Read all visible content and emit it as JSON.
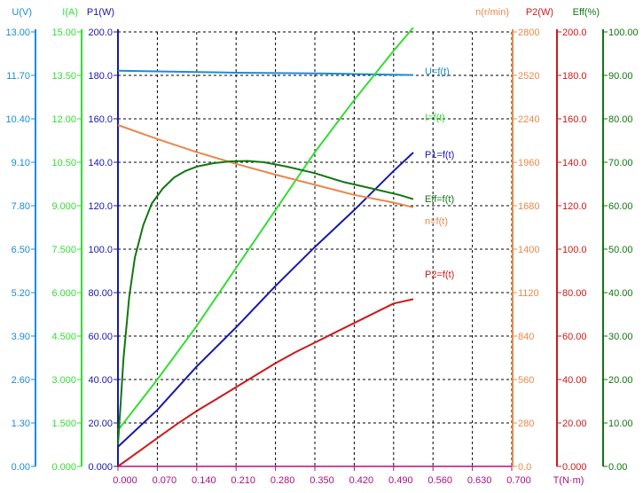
{
  "chart_data": {
    "type": "line",
    "colors": {
      "u": "#1a8cd8",
      "i": "#33dd33",
      "p1": "#1818aa",
      "n": "#e8884a",
      "p2": "#cc1a1a",
      "eff": "#117711",
      "xaxis": "#b0107a",
      "grid": "#000000"
    },
    "x_axis": {
      "label": "T(N·m)",
      "min": 0.0,
      "max": 0.7,
      "ticks": [
        "0.000",
        "0.070",
        "0.140",
        "0.210",
        "0.280",
        "0.350",
        "0.420",
        "0.490",
        "0.560",
        "0.630",
        "0.700"
      ]
    },
    "axes": [
      {
        "key": "u",
        "label": "U(V)",
        "min": 0,
        "max": 13,
        "ticks": [
          "0.00",
          "1.30",
          "2.60",
          "3.90",
          "5.20",
          "6.50",
          "7.80",
          "9.10",
          "10.40",
          "11.70",
          "13.00"
        ]
      },
      {
        "key": "i",
        "label": "I(A)",
        "min": 0,
        "max": 15,
        "ticks": [
          "0.000",
          "1.500",
          "3.000",
          "4.500",
          "6.000",
          "7.500",
          "9.000",
          "10.50",
          "12.00",
          "13.50",
          "15.00"
        ]
      },
      {
        "key": "p1",
        "label": "P1(W)",
        "min": 0,
        "max": 200,
        "ticks": [
          "0.000",
          "20.00",
          "40.00",
          "60.00",
          "80.00",
          "100.0",
          "120.0",
          "140.0",
          "160.0",
          "180.0",
          "200.0"
        ]
      },
      {
        "key": "n",
        "label": "n(r/min)",
        "min": 0,
        "max": 2800,
        "ticks": [
          "0.0",
          "280",
          "560",
          "840",
          "1120",
          "1400",
          "1680",
          "1960",
          "2240",
          "2520",
          "2800"
        ]
      },
      {
        "key": "p2",
        "label": "P2(W)",
        "min": 0,
        "max": 200,
        "ticks": [
          "0.000",
          "20.00",
          "40.00",
          "60.00",
          "80.00",
          "100.0",
          "120.0",
          "140.0",
          "160.0",
          "180.0",
          "200.0"
        ]
      },
      {
        "key": "eff",
        "label": "Eff(%)",
        "min": 0,
        "max": 100,
        "ticks": [
          "0.00",
          "10.00",
          "20.00",
          "30.00",
          "40.00",
          "50.00",
          "60.00",
          "70.00",
          "80.00",
          "90.00",
          "100.00"
        ]
      }
    ],
    "series": [
      {
        "key": "u",
        "name": "U=f(t)",
        "x": [
          0.0,
          0.07,
          0.14,
          0.21,
          0.28,
          0.35,
          0.42,
          0.49,
          0.525
        ],
        "y": [
          11.84,
          11.82,
          11.8,
          11.78,
          11.77,
          11.76,
          11.74,
          11.72,
          11.71
        ]
      },
      {
        "key": "i",
        "name": "I=f(t)",
        "x": [
          0.0,
          0.07,
          0.14,
          0.21,
          0.28,
          0.35,
          0.42,
          0.49,
          0.525
        ],
        "y": [
          1.25,
          3.0,
          4.85,
          6.85,
          8.85,
          10.85,
          12.65,
          14.35,
          15.15
        ]
      },
      {
        "key": "p1",
        "name": "P1=f(t)",
        "x": [
          0.0,
          0.07,
          0.14,
          0.21,
          0.28,
          0.35,
          0.42,
          0.49,
          0.525
        ],
        "y": [
          9.0,
          26.0,
          46.0,
          64.0,
          83.0,
          101.0,
          118.0,
          136.0,
          144.5
        ]
      },
      {
        "key": "n",
        "name": "n=f(t)",
        "x": [
          0.0,
          0.07,
          0.14,
          0.21,
          0.28,
          0.35,
          0.42,
          0.49,
          0.525
        ],
        "y": [
          2200,
          2110,
          2025,
          1950,
          1880,
          1815,
          1750,
          1700,
          1670
        ]
      },
      {
        "key": "p2",
        "name": "P2=f(t)",
        "x": [
          0.0,
          0.035,
          0.07,
          0.105,
          0.14,
          0.175,
          0.21,
          0.245,
          0.28,
          0.315,
          0.35,
          0.385,
          0.42,
          0.455,
          0.49,
          0.525
        ],
        "y": [
          0.0,
          6.5,
          13.0,
          19.5,
          25.5,
          31.0,
          36.5,
          42.0,
          47.5,
          52.5,
          57.0,
          61.5,
          66.0,
          70.5,
          75.0,
          77.0
        ]
      },
      {
        "key": "eff",
        "name": "Eff=f(t)",
        "x": [
          0.0,
          0.005,
          0.01,
          0.02,
          0.03,
          0.045,
          0.06,
          0.08,
          0.1,
          0.12,
          0.14,
          0.17,
          0.2,
          0.23,
          0.26,
          0.3,
          0.35,
          0.4,
          0.45,
          0.5,
          0.525
        ],
        "y": [
          5.0,
          15.0,
          25.0,
          39.0,
          48.0,
          55.5,
          60.5,
          64.0,
          66.5,
          68.0,
          69.0,
          69.8,
          70.2,
          70.3,
          70.0,
          69.0,
          67.5,
          65.5,
          64.0,
          62.5,
          61.5
        ]
      }
    ]
  }
}
